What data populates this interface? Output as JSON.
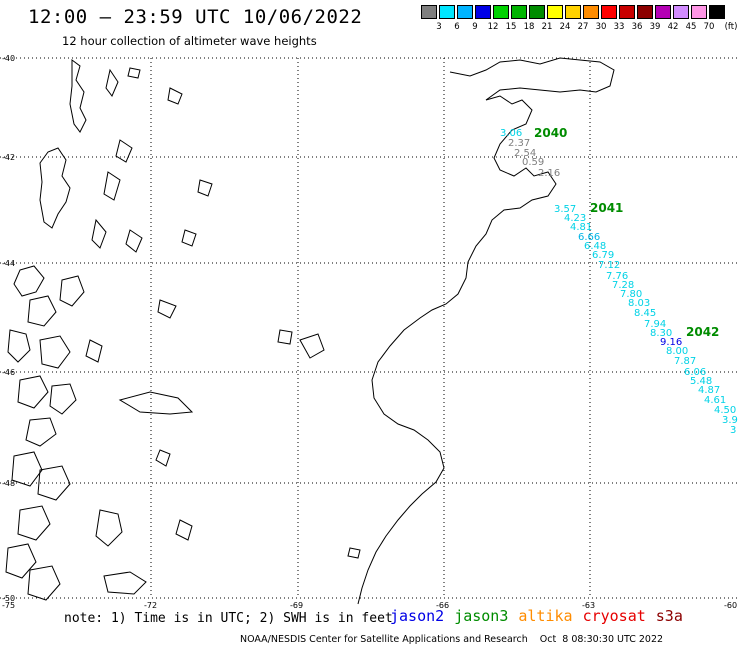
{
  "header": {
    "title": "12:00 – 23:59 UTC 10/06/2022",
    "subtitle": "12 hour collection of altimeter wave heights"
  },
  "legend": {
    "unit": "(ft)",
    "items": [
      {
        "label": "3",
        "color": "#7f7f7f"
      },
      {
        "label": "6",
        "color": "#00e6ff"
      },
      {
        "label": "9",
        "color": "#00b4ff"
      },
      {
        "label": "12",
        "color": "#0000e6"
      },
      {
        "label": "15",
        "color": "#00d200"
      },
      {
        "label": "18",
        "color": "#00b400"
      },
      {
        "label": "21",
        "color": "#008c00"
      },
      {
        "label": "24",
        "color": "#ffff00"
      },
      {
        "label": "27",
        "color": "#ffd200"
      },
      {
        "label": "30",
        "color": "#ff8c00"
      },
      {
        "label": "33",
        "color": "#ff0000"
      },
      {
        "label": "36",
        "color": "#c80000"
      },
      {
        "label": "39",
        "color": "#8c0000"
      },
      {
        "label": "42",
        "color": "#b400b4"
      },
      {
        "label": "45",
        "color": "#d28cff"
      },
      {
        "label": "70",
        "color": "#ff96e6"
      },
      {
        "label": "",
        "color": "#000000"
      }
    ]
  },
  "axes": {
    "lat_labels": [
      "-40",
      "-42",
      "-44",
      "-46",
      "-48",
      "-50"
    ],
    "lon_labels": [
      "-75",
      "-72",
      "-69",
      "-66",
      "-63",
      "-60"
    ]
  },
  "passes": [
    {
      "id": "2040",
      "color": "#008c00"
    },
    {
      "id": "2041",
      "color": "#008c00"
    },
    {
      "id": "2042",
      "color": "#008c00"
    }
  ],
  "observations": [
    {
      "value": "3.06",
      "color": "#00d2e6"
    },
    {
      "value": "2.37",
      "color": "#7f7f7f"
    },
    {
      "value": "2.54",
      "color": "#7f7f7f"
    },
    {
      "value": "0.59",
      "color": "#7f7f7f"
    },
    {
      "value": "2.16",
      "color": "#7f7f7f"
    },
    {
      "value": "3.57",
      "color": "#00d2e6"
    },
    {
      "value": "4.23",
      "color": "#00d2e6"
    },
    {
      "value": "4.81",
      "color": "#00d2e6"
    },
    {
      "value": "6.66",
      "color": "#00b4e6"
    },
    {
      "value": "6.48",
      "color": "#00d2e6"
    },
    {
      "value": "6.79",
      "color": "#00d2e6"
    },
    {
      "value": "7.12",
      "color": "#00d2e6"
    },
    {
      "value": "7.76",
      "color": "#00d2e6"
    },
    {
      "value": "7.28",
      "color": "#00d2e6"
    },
    {
      "value": "7.80",
      "color": "#00d2e6"
    },
    {
      "value": "8.03",
      "color": "#00d2e6"
    },
    {
      "value": "8.45",
      "color": "#00d2e6"
    },
    {
      "value": "7.94",
      "color": "#00d2e6"
    },
    {
      "value": "8.30",
      "color": "#00d2e6"
    },
    {
      "value": "9.16",
      "color": "#0000e6"
    },
    {
      "value": "8.00",
      "color": "#00d2e6"
    },
    {
      "value": "7.87",
      "color": "#00d2e6"
    },
    {
      "value": "6.06",
      "color": "#00d2e6"
    },
    {
      "value": "5.48",
      "color": "#00d2e6"
    },
    {
      "value": "4.87",
      "color": "#00d2e6"
    },
    {
      "value": "4.61",
      "color": "#00d2e6"
    },
    {
      "value": "4.50",
      "color": "#00d2e6"
    },
    {
      "value": "3.9",
      "color": "#00d2e6"
    },
    {
      "value": "3",
      "color": "#00d2e6"
    }
  ],
  "footer": {
    "note": "note: 1) Time is in UTC; 2) SWH is in feet",
    "missions": [
      {
        "name": "jason2",
        "color": "#0000e6"
      },
      {
        "name": "jason3",
        "color": "#008c00"
      },
      {
        "name": "altika",
        "color": "#ff8c00"
      },
      {
        "name": "cryosat",
        "color": "#e60000"
      },
      {
        "name": "s3a",
        "color": "#8c0000"
      }
    ],
    "credit": "NOAA/NESDIS Center for Satellite Applications and Research    Oct  8 08:30:30 UTC 2022"
  }
}
